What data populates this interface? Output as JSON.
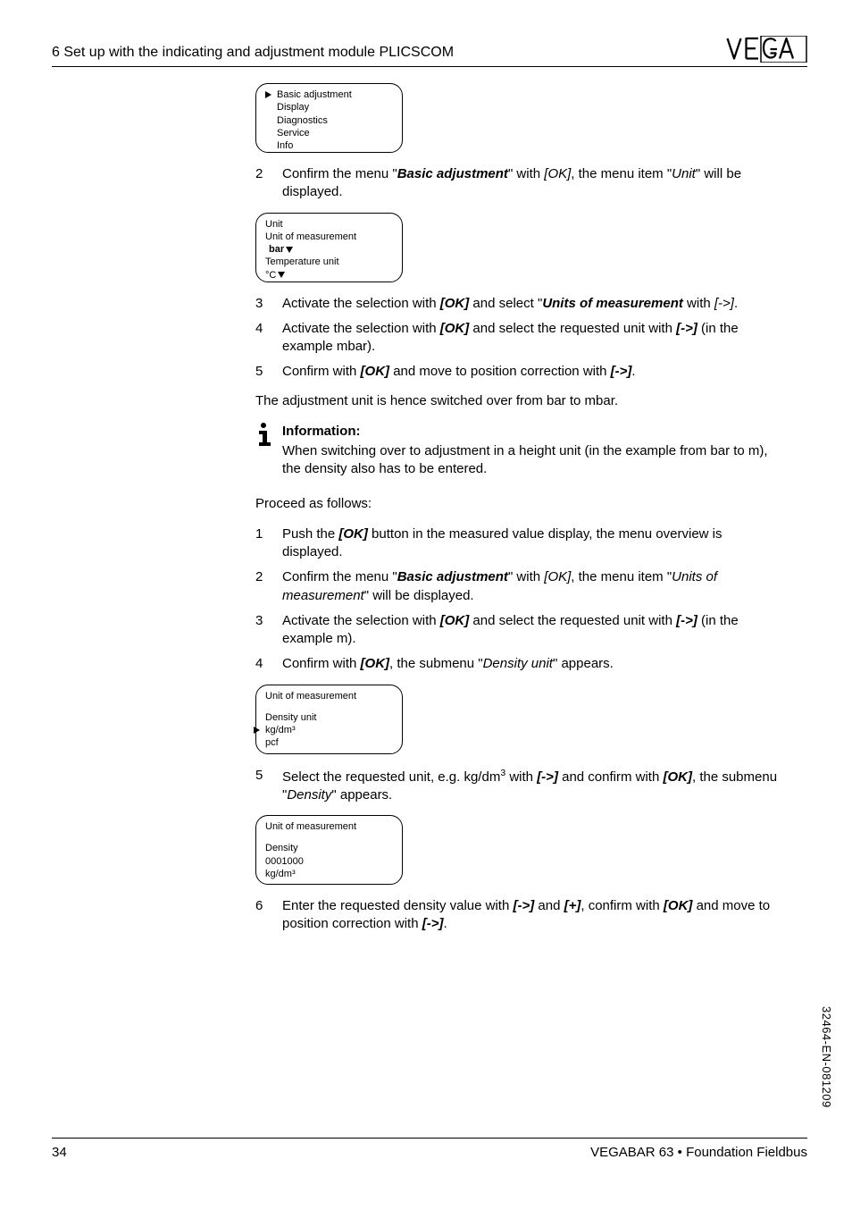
{
  "header": {
    "section": "6  Set up with the indicating and adjustment module PLICSCOM"
  },
  "screens": {
    "menu1": {
      "items": [
        "Basic adjustment",
        "Display",
        "Diagnostics",
        "Service",
        "Info"
      ],
      "selected_index": 0
    },
    "unit": {
      "title": "Unit",
      "line1": "Unit of measurement",
      "value1": "bar",
      "line2": "Temperature unit",
      "value2": "°C"
    },
    "density_unit": {
      "title": "Unit of measurement",
      "label": "Density unit",
      "options": [
        "kg/dm³",
        "pcf"
      ],
      "selected_index": 0
    },
    "density": {
      "title": "Unit of measurement",
      "label": "Density",
      "value": "0001000",
      "unit": "kg/dm³"
    }
  },
  "steps_a": [
    {
      "n": "2",
      "html": "Confirm the menu \"<b><i>Basic adjustment</i></b>\" with <i>[OK]</i>, the menu item \"<i>Unit</i>\" will be displayed."
    }
  ],
  "steps_b": [
    {
      "n": "3",
      "html": "Activate the selection with <b><i>[OK]</i></b> and select \"<b><i>Units of measurement</i></b> with <i>[-&gt;]</i>."
    },
    {
      "n": "4",
      "html": "Activate the selection with <b><i>[OK]</i></b> and select the requested unit with <b><i>[-&gt;]</i></b> (in the example mbar)."
    },
    {
      "n": "5",
      "html": "Confirm with <b><i>[OK]</i></b> and move to position correction with <b><i>[-&gt;]</i></b>."
    }
  ],
  "para_after_b": "The adjustment unit is hence switched over from bar to mbar.",
  "info": {
    "title": "Information:",
    "body": "When switching over to adjustment in a height unit (in the example from bar to m), the density also has to be entered."
  },
  "proceed": "Proceed as follows:",
  "steps_c": [
    {
      "n": "1",
      "html": "Push the <b><i>[OK]</i></b> button in the measured value display, the menu overview is displayed."
    },
    {
      "n": "2",
      "html": "Confirm the menu \"<b><i>Basic adjustment</i></b>\" with <i>[OK]</i>, the menu item \"<i>Units of measurement</i>\" will be displayed."
    },
    {
      "n": "3",
      "html": "Activate the selection with <b><i>[OK]</i></b> and select the requested unit with <b><i>[-&gt;]</i></b> (in the example m)."
    },
    {
      "n": "4",
      "html": "Confirm with <b><i>[OK]</i></b>, the submenu \"<i>Density unit</i>\" appears."
    }
  ],
  "steps_d": [
    {
      "n": "5",
      "html": "Select the requested unit, e.g. kg/dm<span class='sup'>3</span> with <b><i>[-&gt;]</i></b> and confirm with <b><i>[OK]</i></b>, the submenu \"<i>Density</i>\" appears."
    }
  ],
  "steps_e": [
    {
      "n": "6",
      "html": "Enter the requested density value with <b><i>[-&gt;]</i></b> and <b><i>[+]</i></b>, confirm with <b><i>[OK]</i></b> and move to position correction with <b><i>[-&gt;]</i></b>."
    }
  ],
  "side_note": "32464-EN-081209",
  "footer": {
    "page": "34",
    "doc": "VEGABAR 63 • Foundation Fieldbus"
  }
}
